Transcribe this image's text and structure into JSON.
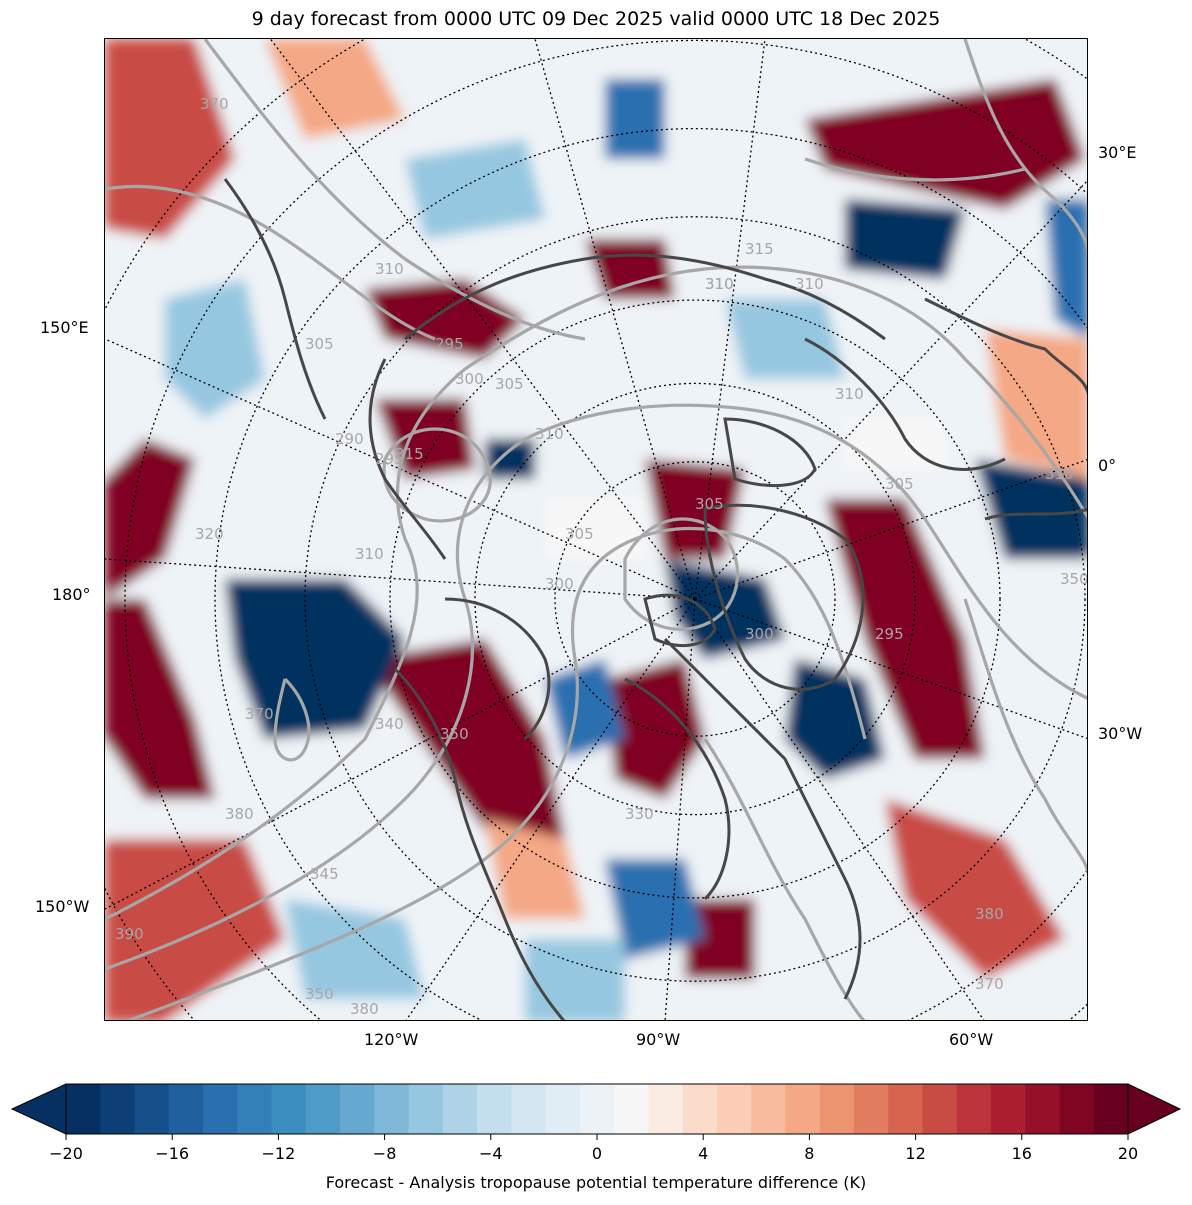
{
  "title": "9 day forecast from 0000 UTC 09 Dec 2025 valid 0000 UTC 18 Dec 2025",
  "map": {
    "projection": "north-polar-stereographic",
    "field": "Forecast - Analysis tropopause potential temperature difference",
    "contour_overlay": "tropopause potential temperature (K)",
    "contour_labels": [
      "370",
      "310",
      "315",
      "310",
      "310",
      "305",
      "295",
      "290",
      "295",
      "300",
      "305",
      "315",
      "310",
      "310",
      "310",
      "305",
      "305",
      "305",
      "300",
      "295",
      "340",
      "350",
      "350",
      "310",
      "380",
      "370",
      "350",
      "370",
      "380",
      "390",
      "380",
      "320",
      "310",
      "300",
      "330",
      "345"
    ],
    "lon_labels_bottom": [
      "120°W",
      "90°W",
      "60°W"
    ],
    "lon_labels_right": [
      "30°E",
      "0°",
      "30°W"
    ],
    "lon_labels_left": [
      "150°E",
      "180°",
      "150°W"
    ]
  },
  "colorbar": {
    "label": "Forecast - Analysis tropopause potential temperature difference (K)",
    "ticks": [
      "−20",
      "−16",
      "−12",
      "−8",
      "−4",
      "0",
      "4",
      "8",
      "12",
      "16",
      "20"
    ],
    "min": -20,
    "max": 20,
    "step": 1.5,
    "extend": "both",
    "colormap": "RdBu_r",
    "colors": [
      "#053061",
      "#0d3f76",
      "#174f8a",
      "#21609e",
      "#2a6fb0",
      "#337fb8",
      "#3d8ec0",
      "#4e9bc8",
      "#66a9d0",
      "#7eb7d8",
      "#96c7e0",
      "#aed3e7",
      "#c3dfee",
      "#d3e6f1",
      "#e0edf4",
      "#ecf2f6",
      "#f7f7f7",
      "#faebe3",
      "#fbdccb",
      "#fbcdb4",
      "#f8bb9e",
      "#f4a885",
      "#ec9370",
      "#e27d60",
      "#d6644f",
      "#c94c44",
      "#bc333b",
      "#ab1f31",
      "#951129",
      "#7f0622",
      "#67001f"
    ]
  }
}
